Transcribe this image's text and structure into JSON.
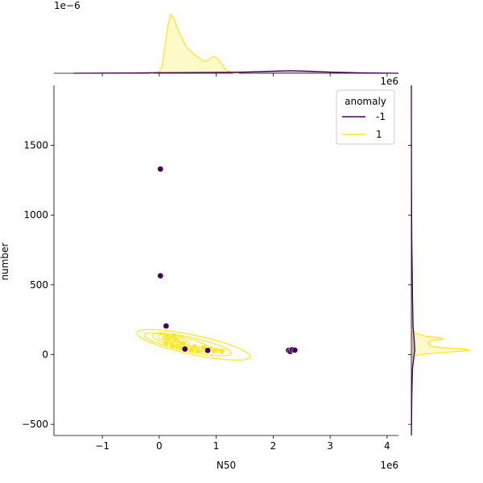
{
  "chart_data": {
    "type": "scatter",
    "subtype": "jointplot-with-kde",
    "xlabel": "N50",
    "ylabel": "number",
    "xlim": [
      -1850000,
      4200000
    ],
    "ylim": [
      -580,
      1930
    ],
    "x_ticks": [
      -1000000,
      0,
      1000000,
      2000000,
      3000000,
      4000000
    ],
    "x_tick_labels": [
      "−1",
      "0",
      "1",
      "2",
      "3",
      "4"
    ],
    "x_offset_label": "1e6",
    "y_ticks": [
      -500,
      0,
      500,
      1000,
      1500
    ],
    "y_tick_labels": [
      "−500",
      "0",
      "500",
      "1000",
      "1500"
    ],
    "top_marginal_offset_label": "1e−6",
    "right_marginal_offset_label": "1e6",
    "legend": {
      "title": "anomaly",
      "placement": "top-right",
      "entries": [
        {
          "label": "-1",
          "color": "#440154"
        },
        {
          "label": "1",
          "color": "#fde725"
        }
      ]
    },
    "series": [
      {
        "name": "-1",
        "color": "#440154",
        "points": [
          [
            20000,
            1330
          ],
          [
            20000,
            565
          ],
          [
            120000,
            205
          ],
          [
            850000,
            30
          ],
          [
            450000,
            40
          ],
          [
            2270000,
            30
          ],
          [
            2300000,
            22
          ],
          [
            2330000,
            35
          ],
          [
            2380000,
            32
          ]
        ]
      },
      {
        "name": "1",
        "color": "#fde725",
        "points": [
          [
            100000,
            120
          ],
          [
            150000,
            130
          ],
          [
            200000,
            115
          ],
          [
            250000,
            95
          ],
          [
            300000,
            110
          ],
          [
            350000,
            85
          ],
          [
            400000,
            70
          ],
          [
            450000,
            60
          ],
          [
            500000,
            55
          ],
          [
            550000,
            45
          ],
          [
            600000,
            40
          ],
          [
            650000,
            35
          ],
          [
            700000,
            38
          ],
          [
            750000,
            30
          ],
          [
            900000,
            40
          ],
          [
            1000000,
            32
          ],
          [
            1100000,
            25
          ],
          [
            180000,
            90
          ],
          [
            220000,
            75
          ],
          [
            320000,
            60
          ],
          [
            380000,
            50
          ],
          [
            420000,
            80
          ],
          [
            480000,
            45
          ],
          [
            620000,
            55
          ],
          [
            560000,
            30
          ],
          [
            680000,
            25
          ],
          [
            780000,
            50
          ],
          [
            960000,
            28
          ],
          [
            260000,
            135
          ],
          [
            140000,
            100
          ],
          [
            230000,
            60
          ],
          [
            120000,
            80
          ]
        ]
      }
    ],
    "top_kde": [
      {
        "name": "1",
        "color": "#fde725",
        "x": [
          -150000,
          0,
          50000,
          100000,
          150000,
          200000,
          250000,
          300000,
          350000,
          400000,
          450000,
          500000,
          550000,
          600000,
          650000,
          700000,
          750000,
          800000,
          850000,
          900000,
          950000,
          1000000,
          1050000,
          1100000,
          1150000,
          1200000,
          1250000,
          1300000,
          1400000
        ],
        "y": [
          0,
          0.02,
          0.12,
          0.45,
          0.8,
          1.0,
          0.95,
          0.82,
          0.7,
          0.6,
          0.5,
          0.42,
          0.38,
          0.33,
          0.3,
          0.26,
          0.22,
          0.2,
          0.22,
          0.26,
          0.28,
          0.27,
          0.22,
          0.15,
          0.08,
          0.04,
          0.02,
          0.005,
          0
        ]
      },
      {
        "name": "-1",
        "color": "#440154",
        "x": [
          -1500000,
          -500000,
          0,
          500000,
          1000000,
          1500000,
          2000000,
          2300000,
          2600000,
          3000000,
          3500000,
          4200000
        ],
        "y": [
          0,
          0.005,
          0.01,
          0.012,
          0.015,
          0.02,
          0.035,
          0.045,
          0.035,
          0.02,
          0.008,
          0
        ]
      }
    ],
    "right_kde": [
      {
        "name": "1",
        "color": "#fde725",
        "y": [
          -30,
          -10,
          0,
          15,
          30,
          40,
          50,
          60,
          70,
          80,
          90,
          100,
          110,
          120,
          130,
          140,
          150,
          165,
          180
        ],
        "x": [
          0,
          0.05,
          0.15,
          0.55,
          1.0,
          0.95,
          0.5,
          0.35,
          0.3,
          0.32,
          0.28,
          0.35,
          0.55,
          0.5,
          0.25,
          0.18,
          0.1,
          0.03,
          0
        ]
      },
      {
        "name": "-1",
        "color": "#440154",
        "y": [
          -580,
          -300,
          -100,
          0,
          30,
          100,
          200,
          400,
          600,
          800,
          1000,
          1300,
          1600,
          1930
        ],
        "x": [
          0.002,
          0.008,
          0.02,
          0.05,
          0.06,
          0.05,
          0.03,
          0.02,
          0.015,
          0.008,
          0.005,
          0.003,
          0.001,
          0
        ]
      }
    ],
    "grid": false
  }
}
